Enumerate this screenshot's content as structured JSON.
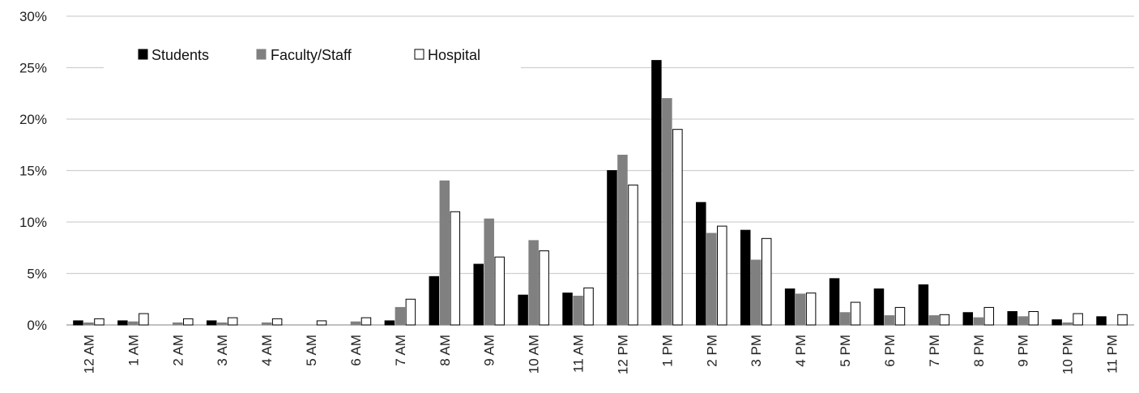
{
  "chart_data": {
    "type": "bar",
    "title": "",
    "xlabel": "",
    "ylabel": "",
    "ylim": [
      0,
      30
    ],
    "yticks": [
      0,
      5,
      10,
      15,
      20,
      25,
      30
    ],
    "ytick_suffix": "%",
    "grid": true,
    "legend_position": "top-left",
    "categories": [
      "12 AM",
      "1 AM",
      "2 AM",
      "3 AM",
      "4 AM",
      "5 AM",
      "6 AM",
      "7 AM",
      "8 AM",
      "9 AM",
      "10 AM",
      "11 AM",
      "12 PM",
      "1 PM",
      "2 PM",
      "3 PM",
      "4 PM",
      "5 PM",
      "6 PM",
      "7 PM",
      "8 PM",
      "9 PM",
      "10 PM",
      "11 PM"
    ],
    "series": [
      {
        "name": "Students",
        "color": "#000000",
        "stroke": "#000000",
        "values": [
          0.4,
          0.4,
          0.0,
          0.4,
          0.0,
          0.0,
          0.0,
          0.4,
          4.7,
          5.9,
          2.9,
          3.1,
          15.0,
          25.7,
          11.9,
          9.2,
          3.5,
          4.5,
          3.5,
          3.9,
          1.2,
          1.3,
          0.5,
          0.8
        ]
      },
      {
        "name": "Faculty/Staff",
        "color": "#808080",
        "stroke": "#808080",
        "values": [
          0.2,
          0.3,
          0.2,
          0.2,
          0.2,
          0.0,
          0.3,
          1.7,
          14.0,
          10.3,
          8.2,
          2.8,
          16.5,
          22.0,
          8.9,
          6.3,
          3.0,
          1.2,
          0.9,
          0.9,
          0.7,
          0.8,
          0.2,
          0.0
        ]
      },
      {
        "name": "Hospital",
        "color": "#ffffff",
        "stroke": "#000000",
        "values": [
          0.6,
          1.1,
          0.6,
          0.7,
          0.6,
          0.4,
          0.7,
          2.5,
          11.0,
          6.6,
          7.2,
          3.6,
          13.6,
          19.0,
          9.6,
          8.4,
          3.1,
          2.2,
          1.7,
          1.0,
          1.7,
          1.3,
          1.1,
          1.0
        ]
      }
    ]
  }
}
